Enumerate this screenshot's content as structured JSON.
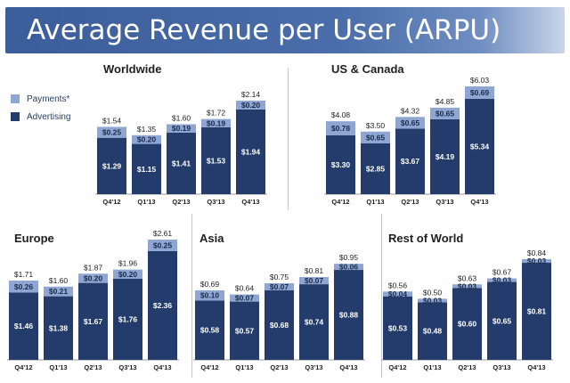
{
  "header": {
    "title": "Average Revenue per User (ARPU)"
  },
  "legend": {
    "items": [
      {
        "label": "Payments*",
        "color": "#8ea6d1"
      },
      {
        "label": "Advertising",
        "color": "#243c6b"
      }
    ]
  },
  "colors": {
    "payments": "#8ea6d1",
    "advertising": "#243c6b",
    "banner": "#3b5d9a"
  },
  "chart_data": [
    {
      "type": "bar",
      "stacked": true,
      "title": "Worldwide",
      "categories": [
        "Q4'12",
        "Q1'13",
        "Q2'13",
        "Q3'13",
        "Q4'13"
      ],
      "series": [
        {
          "name": "Advertising",
          "values": [
            1.29,
            1.15,
            1.41,
            1.53,
            1.94
          ],
          "labels": [
            "$1.29",
            "$1.15",
            "$1.41",
            "$1.53",
            "$1.94"
          ]
        },
        {
          "name": "Payments*",
          "values": [
            0.25,
            0.2,
            0.19,
            0.19,
            0.2
          ],
          "labels": [
            "$0.25",
            "$0.20",
            "$0.19",
            "$0.19",
            "$0.20"
          ]
        }
      ],
      "totals": [
        1.54,
        1.35,
        1.6,
        1.72,
        2.14
      ],
      "total_labels": [
        "$1.54",
        "$1.35",
        "$1.60",
        "$1.72",
        "$2.14"
      ],
      "ylim": [
        0,
        2.14
      ]
    },
    {
      "type": "bar",
      "stacked": true,
      "title": "US & Canada",
      "categories": [
        "Q4'12",
        "Q1'13",
        "Q2'13",
        "Q3'13",
        "Q4'13"
      ],
      "series": [
        {
          "name": "Advertising",
          "values": [
            3.3,
            2.85,
            3.67,
            4.19,
            5.34
          ],
          "labels": [
            "$3.30",
            "$2.85",
            "$3.67",
            "$4.19",
            "$5.34"
          ]
        },
        {
          "name": "Payments*",
          "values": [
            0.78,
            0.65,
            0.65,
            0.65,
            0.69
          ],
          "labels": [
            "$0.78",
            "$0.65",
            "$0.65",
            "$0.65",
            "$0.69"
          ]
        }
      ],
      "totals": [
        4.08,
        3.5,
        4.32,
        4.85,
        6.03
      ],
      "total_labels": [
        "$4.08",
        "$3.50",
        "$4.32",
        "$4.85",
        "$6.03"
      ],
      "ylim": [
        0,
        6.03
      ]
    },
    {
      "type": "bar",
      "stacked": true,
      "title": "Europe",
      "categories": [
        "Q4'12",
        "Q1'13",
        "Q2'13",
        "Q3'13",
        "Q4'13"
      ],
      "series": [
        {
          "name": "Advertising",
          "values": [
            1.46,
            1.38,
            1.67,
            1.76,
            2.36
          ],
          "labels": [
            "$1.46",
            "$1.38",
            "$1.67",
            "$1.76",
            "$2.36"
          ]
        },
        {
          "name": "Payments*",
          "values": [
            0.26,
            0.21,
            0.2,
            0.2,
            0.25
          ],
          "labels": [
            "$0.26",
            "$0.21",
            "$0.20",
            "$0.20",
            "$0.25"
          ]
        }
      ],
      "totals": [
        1.71,
        1.6,
        1.87,
        1.96,
        2.61
      ],
      "total_labels": [
        "$1.71",
        "$1.60",
        "$1.87",
        "$1.96",
        "$2.61"
      ],
      "ylim": [
        0,
        2.61
      ]
    },
    {
      "type": "bar",
      "stacked": true,
      "title": "Asia",
      "categories": [
        "Q4'12",
        "Q1'13",
        "Q2'13",
        "Q3'13",
        "Q4'13"
      ],
      "series": [
        {
          "name": "Advertising",
          "values": [
            0.58,
            0.57,
            0.68,
            0.74,
            0.88
          ],
          "labels": [
            "$0.58",
            "$0.57",
            "$0.68",
            "$0.74",
            "$0.88"
          ]
        },
        {
          "name": "Payments*",
          "values": [
            0.1,
            0.07,
            0.07,
            0.07,
            0.06
          ],
          "labels": [
            "$0.10",
            "$0.07",
            "$0.07",
            "$0.07",
            "$0.06"
          ]
        }
      ],
      "totals": [
        0.69,
        0.64,
        0.75,
        0.81,
        0.95
      ],
      "total_labels": [
        "$0.69",
        "$0.64",
        "$0.75",
        "$0.81",
        "$0.95"
      ],
      "ylim": [
        0,
        0.95
      ]
    },
    {
      "type": "bar",
      "stacked": true,
      "title": "Rest of World",
      "categories": [
        "Q4'12",
        "Q1'13",
        "Q2'13",
        "Q3'13",
        "Q4'13"
      ],
      "series": [
        {
          "name": "Advertising",
          "values": [
            0.53,
            0.48,
            0.6,
            0.65,
            0.81
          ],
          "labels": [
            "$0.53",
            "$0.48",
            "$0.60",
            "$0.65",
            "$0.81"
          ]
        },
        {
          "name": "Payments*",
          "values": [
            0.04,
            0.03,
            0.03,
            0.03,
            0.03
          ],
          "labels": [
            "$0.04",
            "$0.03",
            "$0.03",
            "$0.03",
            "$0.03"
          ]
        }
      ],
      "totals": [
        0.56,
        0.5,
        0.63,
        0.67,
        0.84
      ],
      "total_labels": [
        "$0.56",
        "$0.50",
        "$0.63",
        "$0.67",
        "$0.84"
      ],
      "ylim": [
        0,
        0.84
      ]
    }
  ]
}
